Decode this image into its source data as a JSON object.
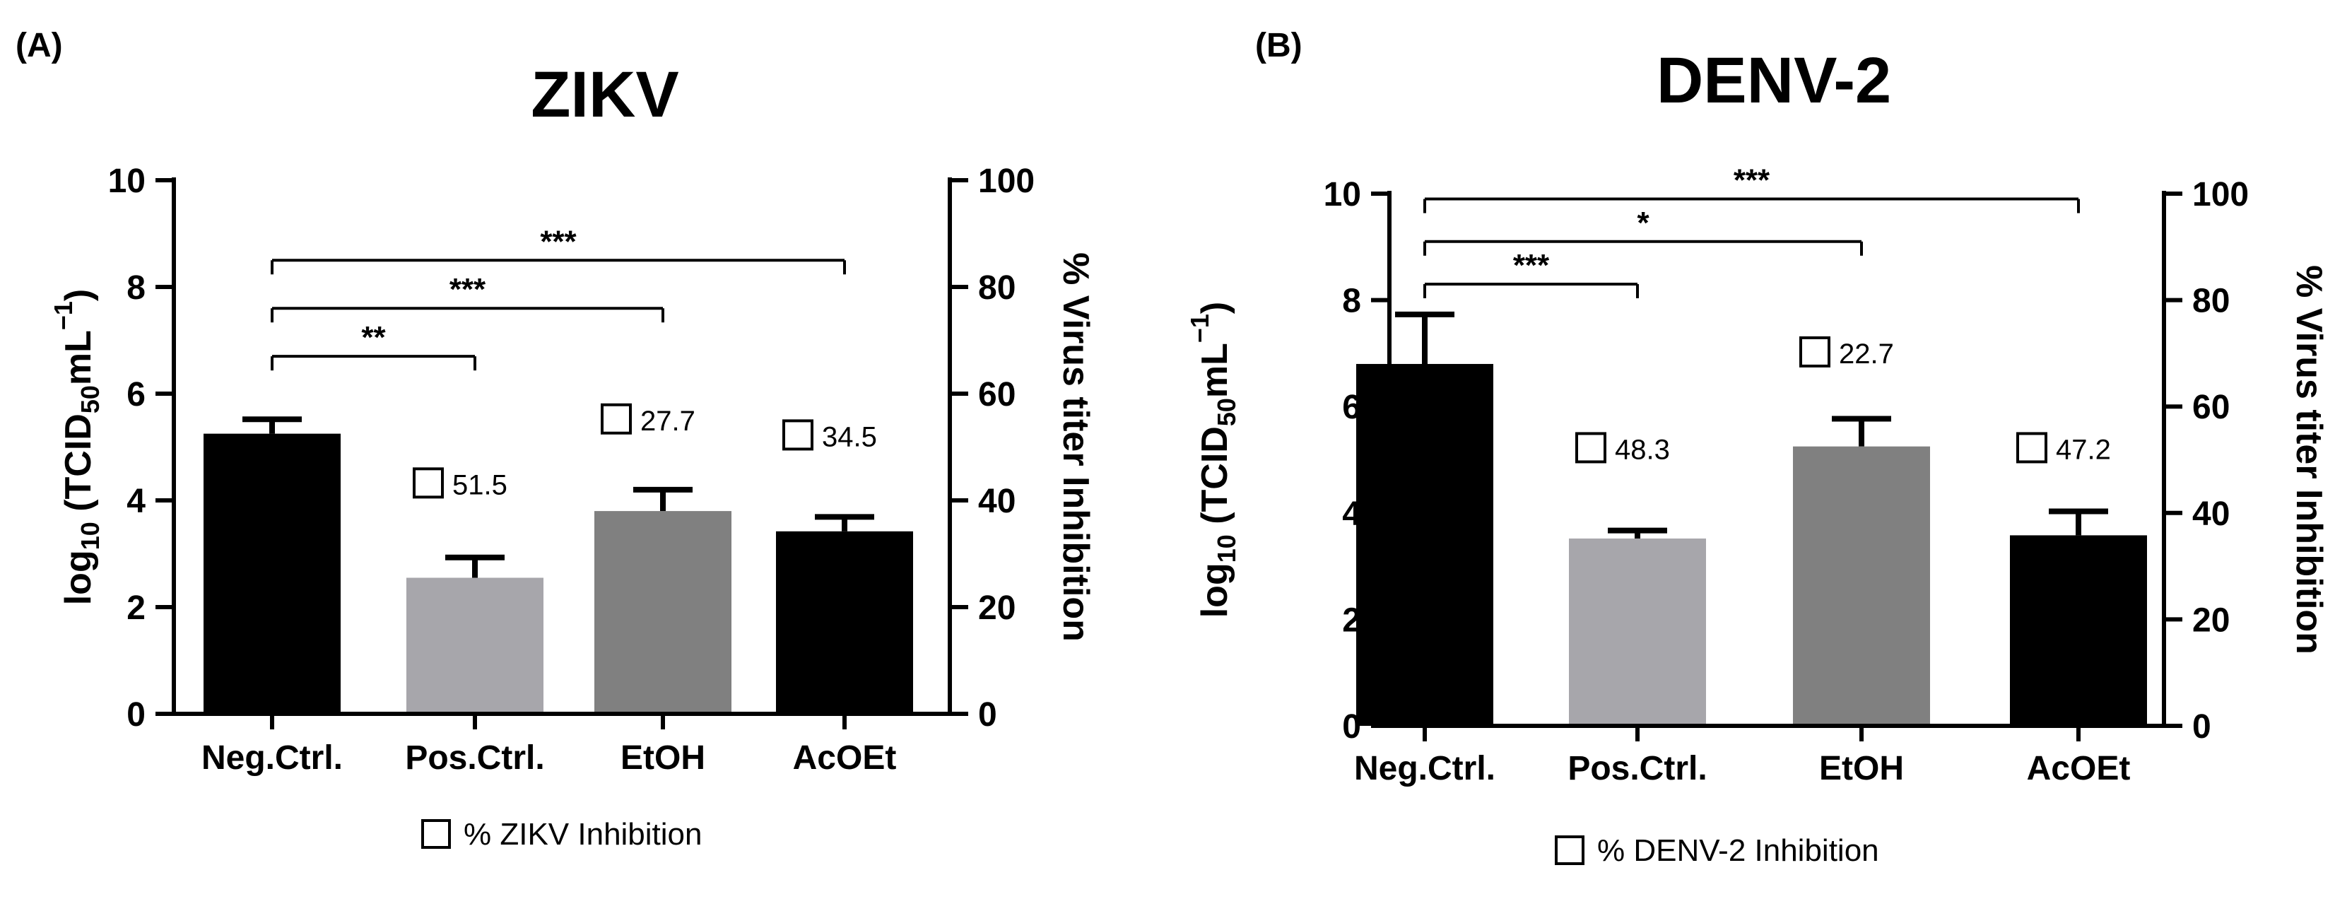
{
  "figure": {
    "panels": [
      {
        "label": "(A)",
        "title": "ZIKV"
      },
      {
        "label": "(B)",
        "title": "DENV-2"
      }
    ]
  },
  "chart_data": [
    {
      "type": "bar",
      "panel_label": "(A)",
      "title": "ZIKV",
      "categories": [
        "Neg.Ctrl.",
        "Pos.Ctrl.",
        "EtOH",
        "AcOEt"
      ],
      "values": [
        5.25,
        2.55,
        3.8,
        3.42
      ],
      "errors": [
        0.27,
        0.38,
        0.4,
        0.27
      ],
      "bar_colors": [
        "#000000",
        "#a7a6ab",
        "#808080",
        "#000000"
      ],
      "ylabel": {
        "main": "log",
        "sub1": "10",
        "mid": " (TCID",
        "sub2": "50",
        "unit": "mL",
        "sup": "−1",
        "end": ")"
      },
      "ylim": [
        0,
        10
      ],
      "yticks": [
        0,
        2,
        4,
        6,
        8,
        10
      ],
      "y2label": "% Virus titer Inhibition",
      "y2lim": [
        0,
        100
      ],
      "y2ticks": [
        0,
        20,
        40,
        60,
        80,
        100
      ],
      "inhibition_labels": [
        {
          "category": "Pos.Ctrl.",
          "value": "51.5",
          "y": 4.3
        },
        {
          "category": "EtOH",
          "value": "27.7",
          "y": 5.5
        },
        {
          "category": "AcOEt",
          "value": "34.5",
          "y": 5.2
        }
      ],
      "significance": [
        {
          "from": "Neg.Ctrl.",
          "to": "Pos.Ctrl.",
          "label": "**",
          "y": 6.7
        },
        {
          "from": "Neg.Ctrl.",
          "to": "EtOH",
          "label": "***",
          "y": 7.6
        },
        {
          "from": "Neg.Ctrl.",
          "to": "AcOEt",
          "label": "***",
          "y": 8.5
        }
      ],
      "legend": "% ZIKV Inhibition"
    },
    {
      "type": "bar",
      "panel_label": "(B)",
      "title": "DENV-2",
      "categories": [
        "Neg.Ctrl.",
        "Pos.Ctrl.",
        "EtOH",
        "AcOEt"
      ],
      "values": [
        6.8,
        3.52,
        5.25,
        3.58
      ],
      "errors": [
        0.93,
        0.15,
        0.52,
        0.45
      ],
      "bar_colors": [
        "#000000",
        "#a7a6ab",
        "#808080",
        "#000000"
      ],
      "ylabel": {
        "main": "log",
        "sub1": "10",
        "mid": " (TCID",
        "sub2": "50",
        "unit": "mL",
        "sup": "−1",
        "end": ")"
      },
      "ylim": [
        0,
        10
      ],
      "yticks": [
        0,
        2,
        4,
        6,
        8,
        10
      ],
      "y2label": "% Virus titer Inhibition",
      "y2lim": [
        0,
        100
      ],
      "y2ticks": [
        0,
        20,
        40,
        60,
        80,
        100
      ],
      "inhibition_labels": [
        {
          "category": "EtOH",
          "value": "22.7",
          "y": 7.0
        },
        {
          "category": "Pos.Ctrl.",
          "value": "48.3",
          "y": 5.2
        },
        {
          "category": "AcOEt",
          "value": "47.2",
          "y": 5.2
        }
      ],
      "significance": [
        {
          "from": "Neg.Ctrl.",
          "to": "Pos.Ctrl.",
          "label": "***",
          "y": 8.3
        },
        {
          "from": "Neg.Ctrl.",
          "to": "EtOH",
          "label": "*",
          "y": 9.1
        },
        {
          "from": "Neg.Ctrl.",
          "to": "AcOEt",
          "label": "***",
          "y": 9.9
        }
      ],
      "legend": "% DENV-2 Inhibition"
    }
  ]
}
